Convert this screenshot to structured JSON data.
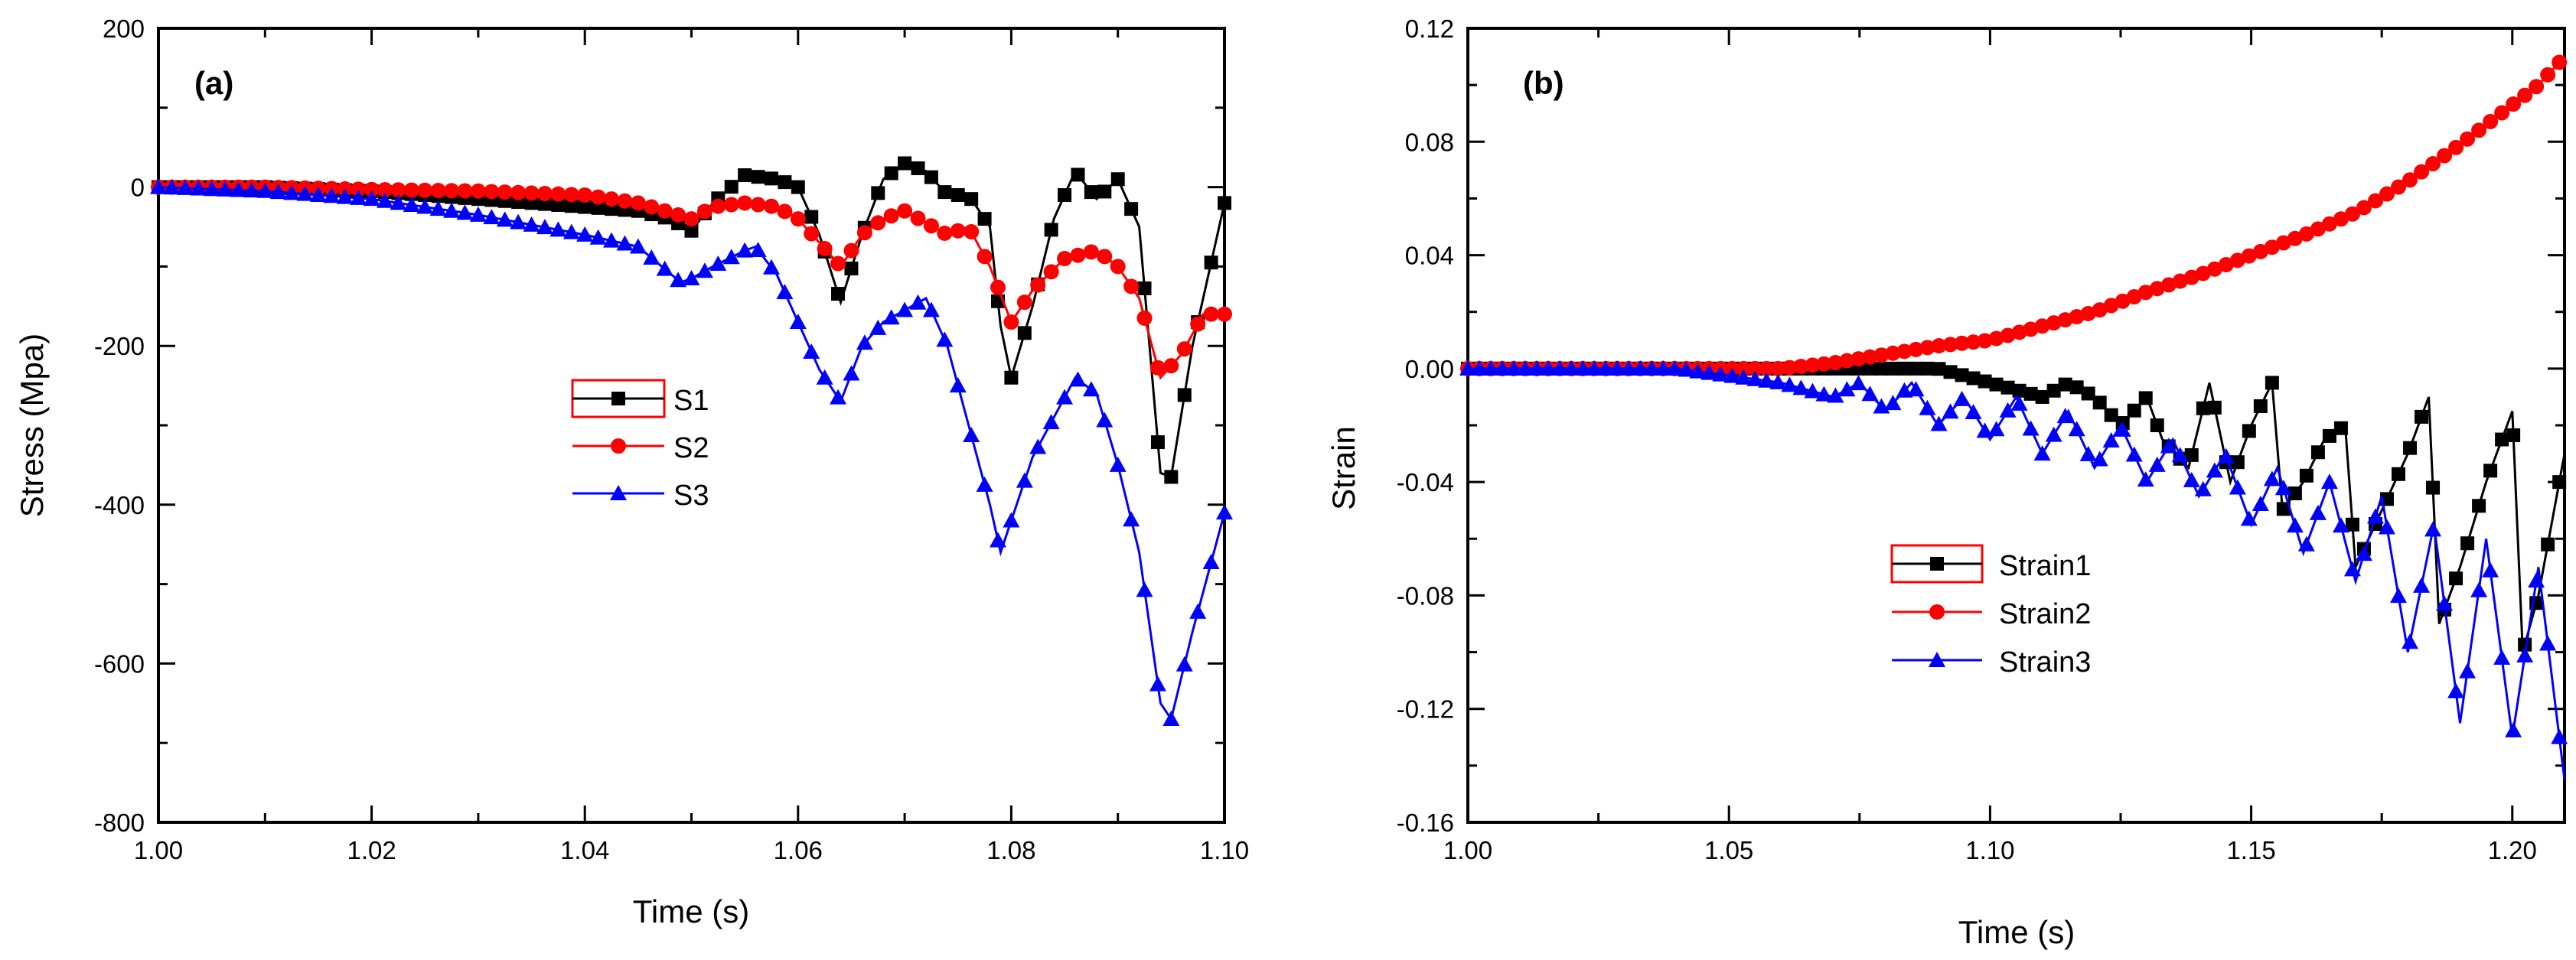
{
  "chart_data": [
    {
      "type": "line",
      "panel_label": "(a)",
      "xlabel": "Time (s)",
      "ylabel": "Stress (Mpa)",
      "xlim": [
        1.0,
        1.1
      ],
      "ylim": [
        -800,
        200
      ],
      "xticks": [
        "1.00",
        "1.02",
        "1.04",
        "1.06",
        "1.08",
        "1.10"
      ],
      "yticks": [
        "200",
        "0",
        "-200",
        "-400",
        "-600",
        "-800"
      ],
      "legend_position": "center",
      "series": [
        {
          "name": "S1",
          "color": "#000000",
          "marker": "square",
          "x": [
            1.0,
            1.01,
            1.02,
            1.03,
            1.035,
            1.04,
            1.045,
            1.048,
            1.05,
            1.052,
            1.055,
            1.058,
            1.06,
            1.062,
            1.064,
            1.066,
            1.068,
            1.07,
            1.072,
            1.074,
            1.076,
            1.078,
            1.079,
            1.08,
            1.082,
            1.084,
            1.086,
            1.088,
            1.09,
            1.092,
            1.094,
            1.095,
            1.097,
            1.099,
            1.1
          ],
          "y": [
            0,
            0,
            -5,
            -15,
            -20,
            -25,
            -30,
            -40,
            -55,
            -20,
            15,
            10,
            0,
            -60,
            -145,
            -60,
            10,
            30,
            20,
            -10,
            -10,
            -50,
            -175,
            -240,
            -150,
            -40,
            20,
            -15,
            10,
            -50,
            -360,
            -365,
            -200,
            -80,
            -20
          ]
        },
        {
          "name": "S2",
          "color": "#ff0000",
          "marker": "circle",
          "x": [
            1.0,
            1.01,
            1.02,
            1.03,
            1.04,
            1.045,
            1.05,
            1.052,
            1.055,
            1.058,
            1.06,
            1.062,
            1.064,
            1.066,
            1.068,
            1.07,
            1.072,
            1.074,
            1.076,
            1.078,
            1.08,
            1.082,
            1.085,
            1.088,
            1.09,
            1.092,
            1.094,
            1.096,
            1.098,
            1.1
          ],
          "y": [
            0,
            0,
            -3,
            -5,
            -10,
            -20,
            -40,
            -25,
            -20,
            -25,
            -40,
            -70,
            -100,
            -60,
            -40,
            -30,
            -45,
            -60,
            -50,
            -100,
            -170,
            -130,
            -90,
            -80,
            -100,
            -140,
            -240,
            -210,
            -160,
            -160
          ]
        },
        {
          "name": "S3",
          "color": "#0000ff",
          "marker": "triangle",
          "x": [
            1.0,
            1.01,
            1.02,
            1.03,
            1.04,
            1.045,
            1.049,
            1.05,
            1.052,
            1.055,
            1.056,
            1.058,
            1.06,
            1.062,
            1.064,
            1.066,
            1.068,
            1.07,
            1.072,
            1.074,
            1.076,
            1.078,
            1.079,
            1.08,
            1.082,
            1.084,
            1.086,
            1.088,
            1.09,
            1.092,
            1.094,
            1.095,
            1.097,
            1.099,
            1.1
          ],
          "y": [
            0,
            -5,
            -15,
            -35,
            -60,
            -75,
            -120,
            -115,
            -100,
            -80,
            -75,
            -110,
            -170,
            -230,
            -270,
            -200,
            -170,
            -155,
            -140,
            -200,
            -300,
            -400,
            -460,
            -420,
            -340,
            -290,
            -240,
            -260,
            -350,
            -460,
            -650,
            -670,
            -560,
            -460,
            -410
          ]
        }
      ]
    },
    {
      "type": "line",
      "panel_label": "(b)",
      "xlabel": "Time (s)",
      "ylabel": "Strain",
      "xlim": [
        1.0,
        1.21
      ],
      "ylim": [
        -0.16,
        0.12
      ],
      "xticks": [
        "1.00",
        "1.05",
        "1.10",
        "1.15",
        "1.20"
      ],
      "yticks": [
        "0.12",
        "0.08",
        "0.04",
        "0.00",
        "-0.04",
        "-0.08",
        "-0.12",
        "-0.16"
      ],
      "legend_position": "center",
      "series": [
        {
          "name": "Strain1",
          "color": "#000000",
          "marker": "square",
          "x": [
            1.0,
            1.05,
            1.07,
            1.09,
            1.1,
            1.11,
            1.115,
            1.12,
            1.125,
            1.13,
            1.133,
            1.138,
            1.142,
            1.146,
            1.15,
            1.154,
            1.156,
            1.16,
            1.164,
            1.168,
            1.17,
            1.175,
            1.18,
            1.184,
            1.186,
            1.19,
            1.195,
            1.2,
            1.202,
            1.205,
            1.21
          ],
          "y": [
            0.0,
            0.0,
            0.0,
            0.0,
            -0.005,
            -0.01,
            -0.005,
            -0.01,
            -0.02,
            -0.01,
            -0.025,
            -0.035,
            -0.005,
            -0.04,
            -0.02,
            -0.005,
            -0.05,
            -0.04,
            -0.025,
            -0.02,
            -0.07,
            -0.05,
            -0.03,
            -0.01,
            -0.09,
            -0.07,
            -0.04,
            -0.015,
            -0.1,
            -0.08,
            -0.03
          ]
        },
        {
          "name": "Strain2",
          "color": "#ff0000",
          "marker": "circle",
          "x": [
            1.0,
            1.05,
            1.06,
            1.07,
            1.08,
            1.09,
            1.1,
            1.11,
            1.12,
            1.13,
            1.14,
            1.15,
            1.16,
            1.17,
            1.18,
            1.19,
            1.2,
            1.205,
            1.21
          ],
          "y": [
            0.0,
            0.0,
            0.0,
            0.002,
            0.005,
            0.008,
            0.01,
            0.015,
            0.02,
            0.027,
            0.033,
            0.04,
            0.047,
            0.055,
            0.066,
            0.079,
            0.093,
            0.1,
            0.11
          ]
        },
        {
          "name": "Strain3",
          "color": "#0000ff",
          "marker": "triangle",
          "x": [
            1.0,
            1.04,
            1.06,
            1.07,
            1.075,
            1.08,
            1.085,
            1.09,
            1.095,
            1.1,
            1.105,
            1.11,
            1.115,
            1.12,
            1.125,
            1.13,
            1.135,
            1.14,
            1.145,
            1.15,
            1.155,
            1.16,
            1.165,
            1.17,
            1.175,
            1.18,
            1.185,
            1.19,
            1.195,
            1.2,
            1.205,
            1.21
          ],
          "y": [
            0.0,
            0.0,
            -0.005,
            -0.01,
            -0.005,
            -0.015,
            -0.005,
            -0.02,
            -0.01,
            -0.025,
            -0.01,
            -0.03,
            -0.015,
            -0.035,
            -0.02,
            -0.04,
            -0.025,
            -0.045,
            -0.03,
            -0.055,
            -0.035,
            -0.065,
            -0.04,
            -0.075,
            -0.045,
            -0.1,
            -0.055,
            -0.125,
            -0.06,
            -0.13,
            -0.07,
            -0.145
          ]
        }
      ]
    }
  ]
}
